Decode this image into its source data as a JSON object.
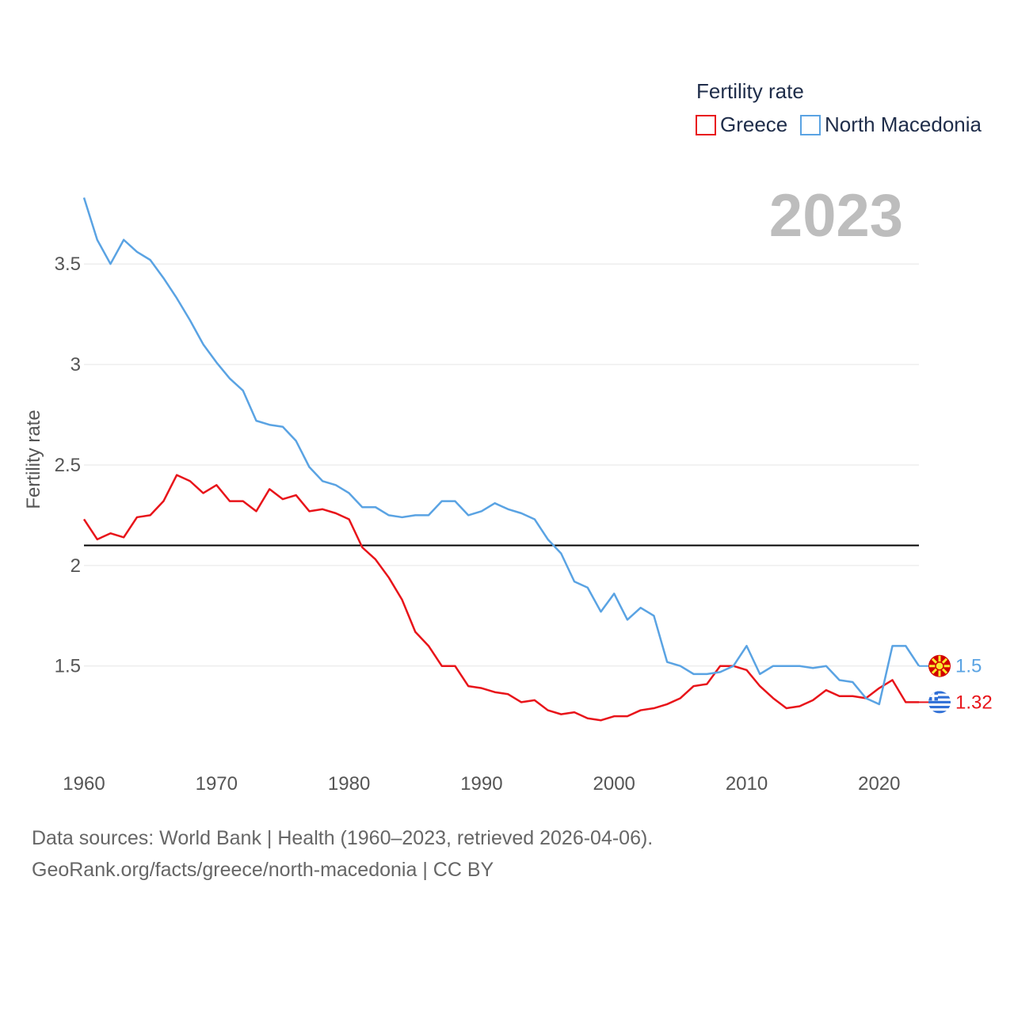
{
  "chart_data": {
    "type": "line",
    "title": "Fertility rate",
    "year_label": "2023",
    "ylabel": "Fertility rate",
    "xlabel": "",
    "xlim": [
      1960,
      2023
    ],
    "ylim": [
      1.03,
      3.95
    ],
    "x_ticks": [
      1960,
      1970,
      1980,
      1990,
      2000,
      2010,
      2020
    ],
    "y_ticks": [
      1.5,
      2,
      2.5,
      3,
      3.5
    ],
    "y_tick_labels": [
      "1.5",
      "2",
      "2.5",
      "3",
      "3.5"
    ],
    "reference_line": {
      "value": 2.1,
      "color": "#000000"
    },
    "legend_position": "top-right",
    "x": [
      1960,
      1961,
      1962,
      1963,
      1964,
      1965,
      1966,
      1967,
      1968,
      1969,
      1970,
      1971,
      1972,
      1973,
      1974,
      1975,
      1976,
      1977,
      1978,
      1979,
      1980,
      1981,
      1982,
      1983,
      1984,
      1985,
      1986,
      1987,
      1988,
      1989,
      1990,
      1991,
      1992,
      1993,
      1994,
      1995,
      1996,
      1997,
      1998,
      1999,
      2000,
      2001,
      2002,
      2003,
      2004,
      2005,
      2006,
      2007,
      2008,
      2009,
      2010,
      2011,
      2012,
      2013,
      2014,
      2015,
      2016,
      2017,
      2018,
      2019,
      2020,
      2021,
      2022,
      2023
    ],
    "series": [
      {
        "name": "Greece",
        "color": "#e8141a",
        "end_label": "1.32",
        "flag": "greece-flag-icon",
        "values": [
          2.23,
          2.13,
          2.16,
          2.14,
          2.24,
          2.25,
          2.32,
          2.45,
          2.42,
          2.36,
          2.4,
          2.32,
          2.32,
          2.27,
          2.38,
          2.33,
          2.35,
          2.27,
          2.28,
          2.26,
          2.23,
          2.09,
          2.03,
          1.94,
          1.83,
          1.67,
          1.6,
          1.5,
          1.5,
          1.4,
          1.39,
          1.37,
          1.36,
          1.32,
          1.33,
          1.28,
          1.26,
          1.27,
          1.24,
          1.23,
          1.25,
          1.25,
          1.28,
          1.29,
          1.31,
          1.34,
          1.4,
          1.41,
          1.5,
          1.5,
          1.48,
          1.4,
          1.34,
          1.29,
          1.3,
          1.33,
          1.38,
          1.35,
          1.35,
          1.34,
          1.39,
          1.43,
          1.32,
          1.32
        ]
      },
      {
        "name": "North Macedonia",
        "color": "#5aa3e3",
        "end_label": "1.5",
        "flag": "north-macedonia-flag-icon",
        "values": [
          3.83,
          3.62,
          3.5,
          3.62,
          3.56,
          3.52,
          3.43,
          3.33,
          3.22,
          3.1,
          3.01,
          2.93,
          2.87,
          2.72,
          2.7,
          2.69,
          2.62,
          2.49,
          2.42,
          2.4,
          2.36,
          2.29,
          2.29,
          2.25,
          2.24,
          2.25,
          2.25,
          2.32,
          2.32,
          2.25,
          2.27,
          2.31,
          2.28,
          2.26,
          2.23,
          2.13,
          2.06,
          1.92,
          1.89,
          1.77,
          1.86,
          1.73,
          1.79,
          1.75,
          1.52,
          1.5,
          1.46,
          1.46,
          1.47,
          1.5,
          1.6,
          1.46,
          1.5,
          1.5,
          1.5,
          1.49,
          1.5,
          1.43,
          1.42,
          1.34,
          1.31,
          1.6,
          1.6,
          1.5
        ]
      }
    ]
  },
  "footer": {
    "line1": "Data sources: World Bank | Health (1960–2023, retrieved 2026-04-06).",
    "line2": "GeoRank.org/facts/greece/north-macedonia | CC BY"
  }
}
